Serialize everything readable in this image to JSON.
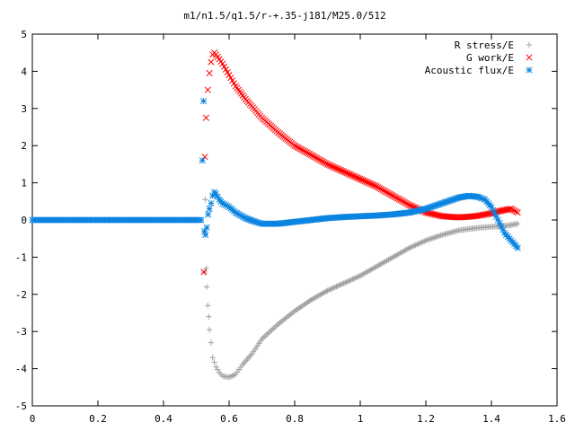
{
  "chart_data": {
    "type": "scatter",
    "title": "m1/n1.5/q1.5/r-+.35-j181/M25.0/512",
    "xlabel": "",
    "ylabel": "",
    "xlim": [
      0,
      1.6
    ],
    "ylim": [
      -5,
      5
    ],
    "x_ticks": [
      0,
      0.2,
      0.4,
      0.6,
      0.8,
      1,
      1.2,
      1.4,
      1.6
    ],
    "x_tick_labels": [
      "0",
      "0.2",
      "0.4",
      "0.6",
      "0.8",
      "1",
      "1.2",
      "1.4",
      "1.6"
    ],
    "y_ticks": [
      -5,
      -4,
      -3,
      -2,
      -1,
      0,
      1,
      2,
      3,
      4,
      5
    ],
    "y_tick_labels": [
      "-5",
      "-4",
      "-3",
      "-2",
      "-1",
      "0",
      "1",
      "2",
      "3",
      "4",
      "5"
    ],
    "grid": false,
    "legend_position": "top-right",
    "series": [
      {
        "name": "R stress/E",
        "color": "#a0a0a0",
        "marker": "plus",
        "x": [
          0.525,
          0.527,
          0.53,
          0.532,
          0.535,
          0.538,
          0.54,
          0.545,
          0.55,
          0.56,
          0.57,
          0.58,
          0.6,
          0.62,
          0.64,
          0.67,
          0.7,
          0.75,
          0.8,
          0.85,
          0.9,
          0.95,
          1.0,
          1.05,
          1.1,
          1.15,
          1.2,
          1.25,
          1.3,
          1.35,
          1.4,
          1.45,
          1.48
        ],
        "y": [
          -1.4,
          0.55,
          -1.3,
          -1.8,
          -2.3,
          -2.6,
          -2.95,
          -3.3,
          -3.7,
          -3.95,
          -4.1,
          -4.2,
          -4.23,
          -4.15,
          -3.9,
          -3.6,
          -3.2,
          -2.8,
          -2.45,
          -2.15,
          -1.9,
          -1.7,
          -1.5,
          -1.25,
          -1.0,
          -0.75,
          -0.55,
          -0.4,
          -0.28,
          -0.22,
          -0.18,
          -0.15,
          -0.1
        ]
      },
      {
        "name": "G work/E",
        "color": "#ff0000",
        "marker": "cross",
        "x": [
          0.523,
          0.526,
          0.53,
          0.535,
          0.54,
          0.545,
          0.55,
          0.555,
          0.56,
          0.58,
          0.6,
          0.62,
          0.65,
          0.7,
          0.75,
          0.8,
          0.85,
          0.9,
          0.95,
          1.0,
          1.05,
          1.1,
          1.15,
          1.2,
          1.25,
          1.3,
          1.35,
          1.4,
          1.43,
          1.46,
          1.48
        ],
        "y": [
          -1.4,
          1.7,
          2.75,
          3.5,
          3.95,
          4.25,
          4.45,
          4.5,
          4.45,
          4.2,
          3.9,
          3.6,
          3.25,
          2.75,
          2.35,
          2.0,
          1.75,
          1.5,
          1.3,
          1.1,
          0.9,
          0.65,
          0.4,
          0.2,
          0.1,
          0.07,
          0.1,
          0.18,
          0.25,
          0.3,
          0.2
        ]
      },
      {
        "name": "Acoustic flux/E",
        "color": "#0a84e0",
        "marker": "star",
        "x": [
          0.0,
          0.05,
          0.1,
          0.15,
          0.2,
          0.25,
          0.3,
          0.35,
          0.4,
          0.45,
          0.5,
          0.515,
          0.522,
          0.525,
          0.528,
          0.532,
          0.536,
          0.54,
          0.545,
          0.55,
          0.555,
          0.56,
          0.57,
          0.58,
          0.6,
          0.62,
          0.65,
          0.68,
          0.7,
          0.75,
          0.8,
          0.85,
          0.9,
          0.95,
          1.0,
          1.05,
          1.1,
          1.15,
          1.2,
          1.25,
          1.3,
          1.33,
          1.36,
          1.38,
          1.4,
          1.42,
          1.44,
          1.46,
          1.48
        ],
        "y": [
          0,
          0,
          0,
          0,
          0,
          0,
          0,
          0,
          0,
          0,
          0,
          0,
          3.2,
          -0.3,
          -0.4,
          -0.2,
          0.15,
          0.3,
          0.45,
          0.65,
          0.75,
          0.7,
          0.55,
          0.45,
          0.35,
          0.2,
          0.05,
          -0.05,
          -0.1,
          -0.1,
          -0.05,
          0.0,
          0.05,
          0.08,
          0.1,
          0.12,
          0.15,
          0.2,
          0.3,
          0.45,
          0.6,
          0.65,
          0.62,
          0.55,
          0.35,
          0.0,
          -0.35,
          -0.55,
          -0.75
        ]
      }
    ]
  }
}
